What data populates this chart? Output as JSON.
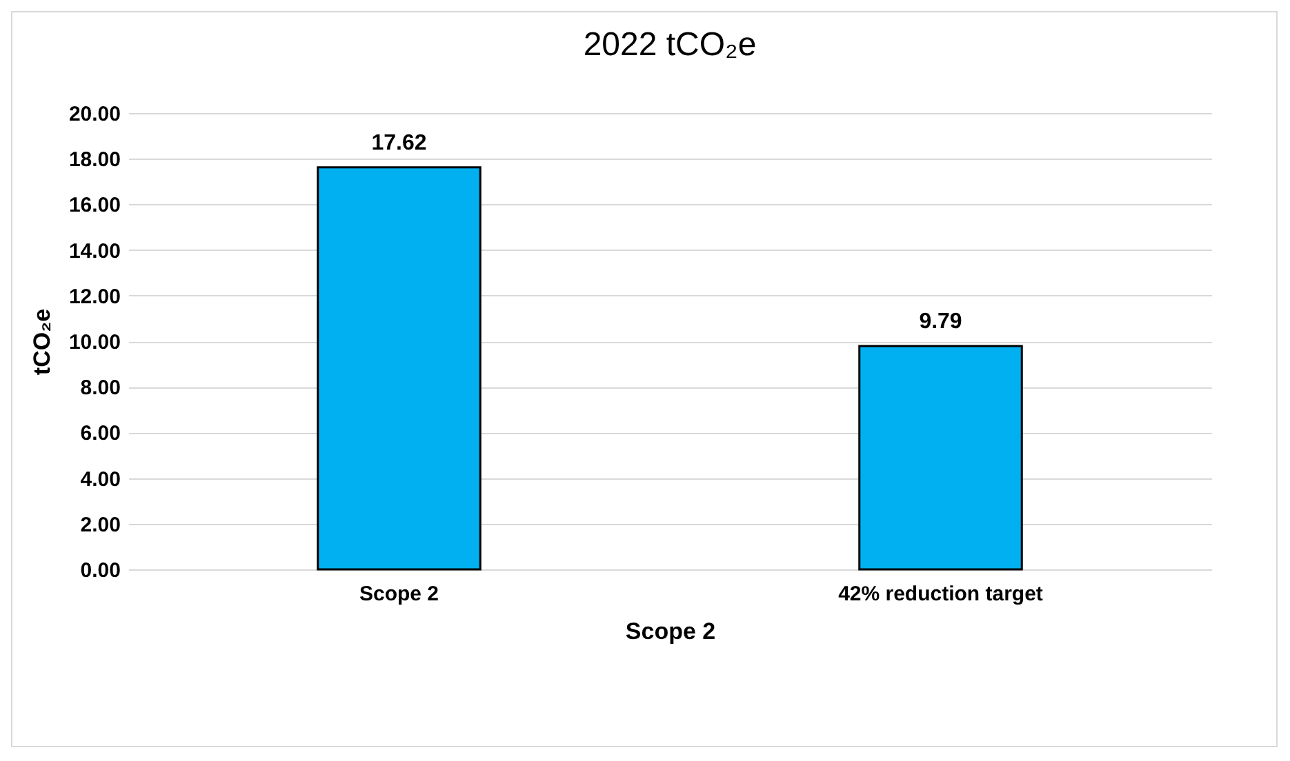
{
  "chart_data": {
    "type": "bar",
    "title": "2022 tCO₂e",
    "xlabel": "Scope 2",
    "ylabel": "tCO₂e",
    "categories": [
      "Scope 2",
      "42% reduction target"
    ],
    "series": [
      {
        "color": "#00b0f0",
        "values": [
          17.62,
          9.79
        ]
      }
    ],
    "ylim": [
      0,
      20
    ],
    "yticks": [
      {
        "value": 0,
        "label": "0.00"
      },
      {
        "value": 2,
        "label": "2.00"
      },
      {
        "value": 4,
        "label": "4.00"
      },
      {
        "value": 6,
        "label": "6.00"
      },
      {
        "value": 8,
        "label": "8.00"
      },
      {
        "value": 10,
        "label": "10.00"
      },
      {
        "value": 12,
        "label": "12.00"
      },
      {
        "value": 14,
        "label": "14.00"
      },
      {
        "value": 16,
        "label": "16.00"
      },
      {
        "value": 18,
        "label": "18.00"
      },
      {
        "value": 20,
        "label": "20.00"
      }
    ],
    "grid": "y",
    "data_labels": true
  }
}
